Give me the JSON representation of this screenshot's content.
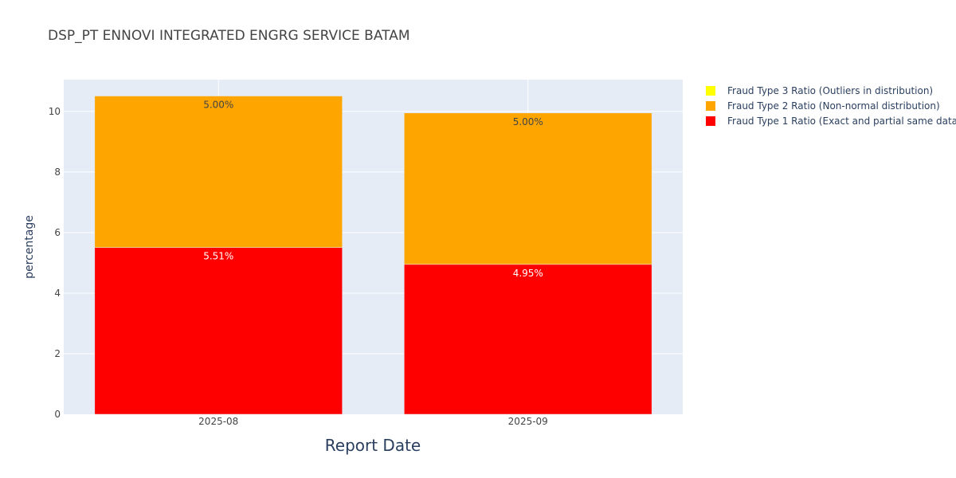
{
  "chart_data": {
    "type": "bar",
    "stacked": true,
    "title": "DSP_PT ENNOVI INTEGRATED ENGRG SERVICE BATAM",
    "xlabel": "Report Date",
    "ylabel": "percentage",
    "categories": [
      "2025-08",
      "2025-09"
    ],
    "ylim": [
      0,
      11.05
    ],
    "yticks": [
      0,
      2,
      4,
      6,
      8,
      10
    ],
    "grid": true,
    "legend_position": "right",
    "series": [
      {
        "name": "Fraud Type 1 Ratio (Exact and partial same data)",
        "color": "#ff0000",
        "values": [
          5.51,
          4.95
        ],
        "labels": [
          "5.51%",
          "4.95%"
        ],
        "label_color": "#ffffff"
      },
      {
        "name": "Fraud Type 2 Ratio (Non-normal distribution)",
        "color": "#ffa500",
        "values": [
          5.0,
          5.0
        ],
        "labels": [
          "5.00%",
          "5.00%"
        ],
        "label_color": "#444444"
      },
      {
        "name": "Fraud Type 3 Ratio (Outliers in distribution)",
        "color": "#ffff00",
        "values": [
          0,
          0
        ],
        "labels": [
          "",
          ""
        ],
        "label_color": "#444444"
      }
    ],
    "legend_order": [
      2,
      1,
      0
    ]
  }
}
